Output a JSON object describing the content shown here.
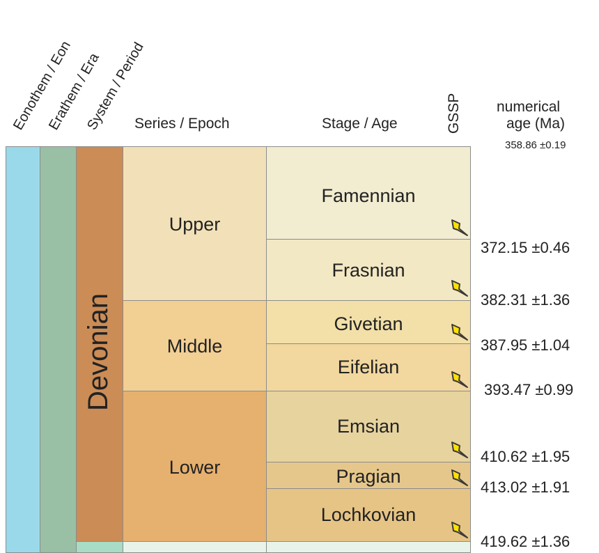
{
  "headers": {
    "eonothem": "Eonothem / Eon",
    "erathem": "Erathem / Era",
    "system": "System / Period",
    "series": "Series / Epoch",
    "stage": "Stage / Age",
    "gssp": "GSSP",
    "age_line1": "numerical",
    "age_line2": "age (Ma)",
    "top_age": "358.86 ±0.19"
  },
  "period": "Devonian",
  "series": {
    "upper": "Upper",
    "middle": "Middle",
    "lower": "Lower"
  },
  "stages": {
    "famennian": "Famennian",
    "frasnian": "Frasnian",
    "givetian": "Givetian",
    "eifelian": "Eifelian",
    "emsian": "Emsian",
    "pragian": "Pragian",
    "lochkovian": "Lochkovian"
  },
  "ages": {
    "famennian_base": "372.15 ±0.46",
    "frasnian_base": "382.31 ±1.36",
    "givetian_base": "387.95 ±1.04",
    "eifelian_base": "393.47 ±0.99",
    "emsian_base": "410.62 ±1.95",
    "pragian_base": "413.02 ±1.91",
    "lochkovian_base": "419.62 ±1.36"
  },
  "colors": {
    "eon": "#9ad9ea",
    "era": "#99c0a4",
    "period": "#cb8c56",
    "upper": "#f2e1b8",
    "middle": "#f2cf93",
    "lower": "#e6b06e",
    "famennian": "#f2ecd0",
    "frasnian": "#f2e8c3",
    "givetian": "#f2e0a8",
    "eifelian": "#f2d79e",
    "emsian": "#e6d39e",
    "pragian": "#e6c78b",
    "lochkovian": "#e6c485",
    "next_period": "#a8dcc6",
    "next_cells": "#e8f4ea",
    "gssp_fill": "#ffe100",
    "gssp_stroke": "#3a3a3a"
  }
}
